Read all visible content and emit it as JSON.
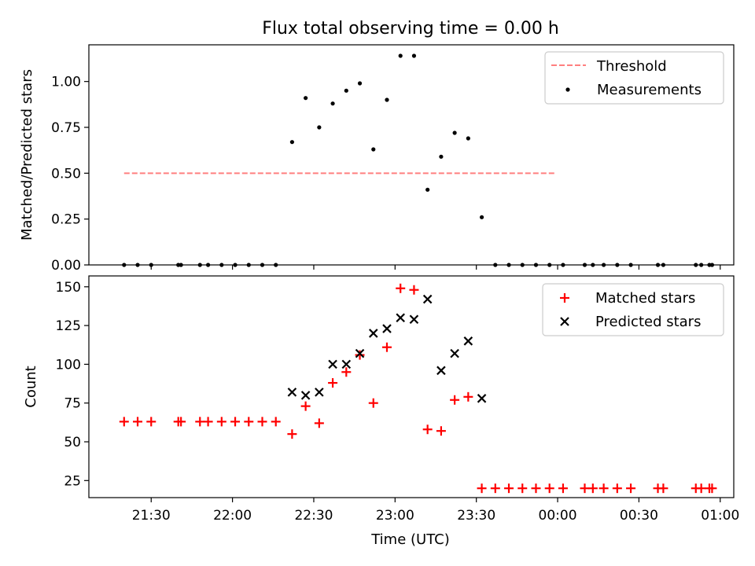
{
  "chart_data": [
    {
      "type": "scatter",
      "title": "Flux total observing time = 0.00 h",
      "xlabel": "",
      "ylabel": "Matched/Predicted stars",
      "ylim": [
        0,
        1.2
      ],
      "y_ticks": [
        "0.00",
        "0.25",
        "0.50",
        "0.75",
        "1.00"
      ],
      "x_ticks": [
        "21:30",
        "22:00",
        "22:30",
        "23:00",
        "23:30",
        "00:00",
        "00:30",
        "01:00"
      ],
      "legend_position": "top-right",
      "threshold": {
        "name": "Threshold",
        "value": 0.5,
        "x_range": [
          "21:20",
          "23:59"
        ],
        "color": "#ff7f7f"
      },
      "series": [
        {
          "name": "Measurements",
          "color": "#000000",
          "x": [
            "21:20",
            "21:25",
            "21:30",
            "21:40",
            "21:41",
            "21:48",
            "21:51",
            "21:56",
            "22:01",
            "22:06",
            "22:11",
            "22:16",
            "22:22",
            "22:27",
            "22:32",
            "22:37",
            "22:42",
            "22:47",
            "22:52",
            "22:57",
            "23:02",
            "23:07",
            "23:12",
            "23:17",
            "23:22",
            "23:27",
            "23:32",
            "23:37",
            "23:42",
            "23:47",
            "23:52",
            "23:57",
            "24:02",
            "24:10",
            "24:13",
            "24:17",
            "24:22",
            "24:27",
            "24:37",
            "24:39",
            "24:51",
            "24:53",
            "24:56",
            "24:57"
          ],
          "y": [
            0,
            0,
            0,
            0,
            0,
            0,
            0,
            0,
            0,
            0,
            0,
            0,
            0.67,
            0.91,
            0.75,
            0.88,
            0.95,
            0.99,
            0.63,
            0.9,
            1.14,
            1.14,
            0.41,
            0.59,
            0.72,
            0.69,
            0.26,
            0,
            0,
            0,
            0,
            0,
            0,
            0,
            0,
            0,
            0,
            0,
            0,
            0,
            0,
            0,
            0,
            0
          ]
        }
      ]
    },
    {
      "type": "scatter",
      "title": "",
      "xlabel": "Time (UTC)",
      "ylabel": "Count",
      "ylim": [
        14,
        157
      ],
      "y_ticks": [
        "25",
        "50",
        "75",
        "100",
        "125",
        "150"
      ],
      "x_ticks": [
        "21:30",
        "22:00",
        "22:30",
        "23:00",
        "23:30",
        "00:00",
        "00:30",
        "01:00"
      ],
      "legend_position": "top-right",
      "series": [
        {
          "name": "Matched stars",
          "marker": "plus",
          "color": "#ff0000",
          "x": [
            "21:20",
            "21:25",
            "21:30",
            "21:40",
            "21:41",
            "21:48",
            "21:51",
            "21:56",
            "22:01",
            "22:06",
            "22:11",
            "22:16",
            "22:22",
            "22:27",
            "22:32",
            "22:37",
            "22:42",
            "22:47",
            "22:52",
            "22:57",
            "23:02",
            "23:07",
            "23:12",
            "23:17",
            "23:22",
            "23:27",
            "23:32",
            "23:37",
            "23:42",
            "23:47",
            "23:52",
            "23:57",
            "24:02",
            "24:10",
            "24:13",
            "24:17",
            "24:22",
            "24:27",
            "24:37",
            "24:39",
            "24:51",
            "24:53",
            "24:56",
            "24:57"
          ],
          "y": [
            63,
            63,
            63,
            63,
            63,
            63,
            63,
            63,
            63,
            63,
            63,
            63,
            55,
            73,
            62,
            88,
            95,
            106,
            75,
            111,
            149,
            148,
            58,
            57,
            77,
            79,
            20,
            20,
            20,
            20,
            20,
            20,
            20,
            20,
            20,
            20,
            20,
            20,
            20,
            20,
            20,
            20,
            20,
            20
          ]
        },
        {
          "name": "Predicted stars",
          "marker": "x",
          "color": "#000000",
          "x": [
            "22:22",
            "22:27",
            "22:32",
            "22:37",
            "22:42",
            "22:47",
            "22:52",
            "22:57",
            "23:02",
            "23:07",
            "23:12",
            "23:17",
            "23:22",
            "23:27",
            "23:32"
          ],
          "y": [
            82,
            80,
            82,
            100,
            100,
            107,
            120,
            123,
            130,
            129,
            142,
            96,
            107,
            115,
            78
          ]
        }
      ]
    }
  ]
}
